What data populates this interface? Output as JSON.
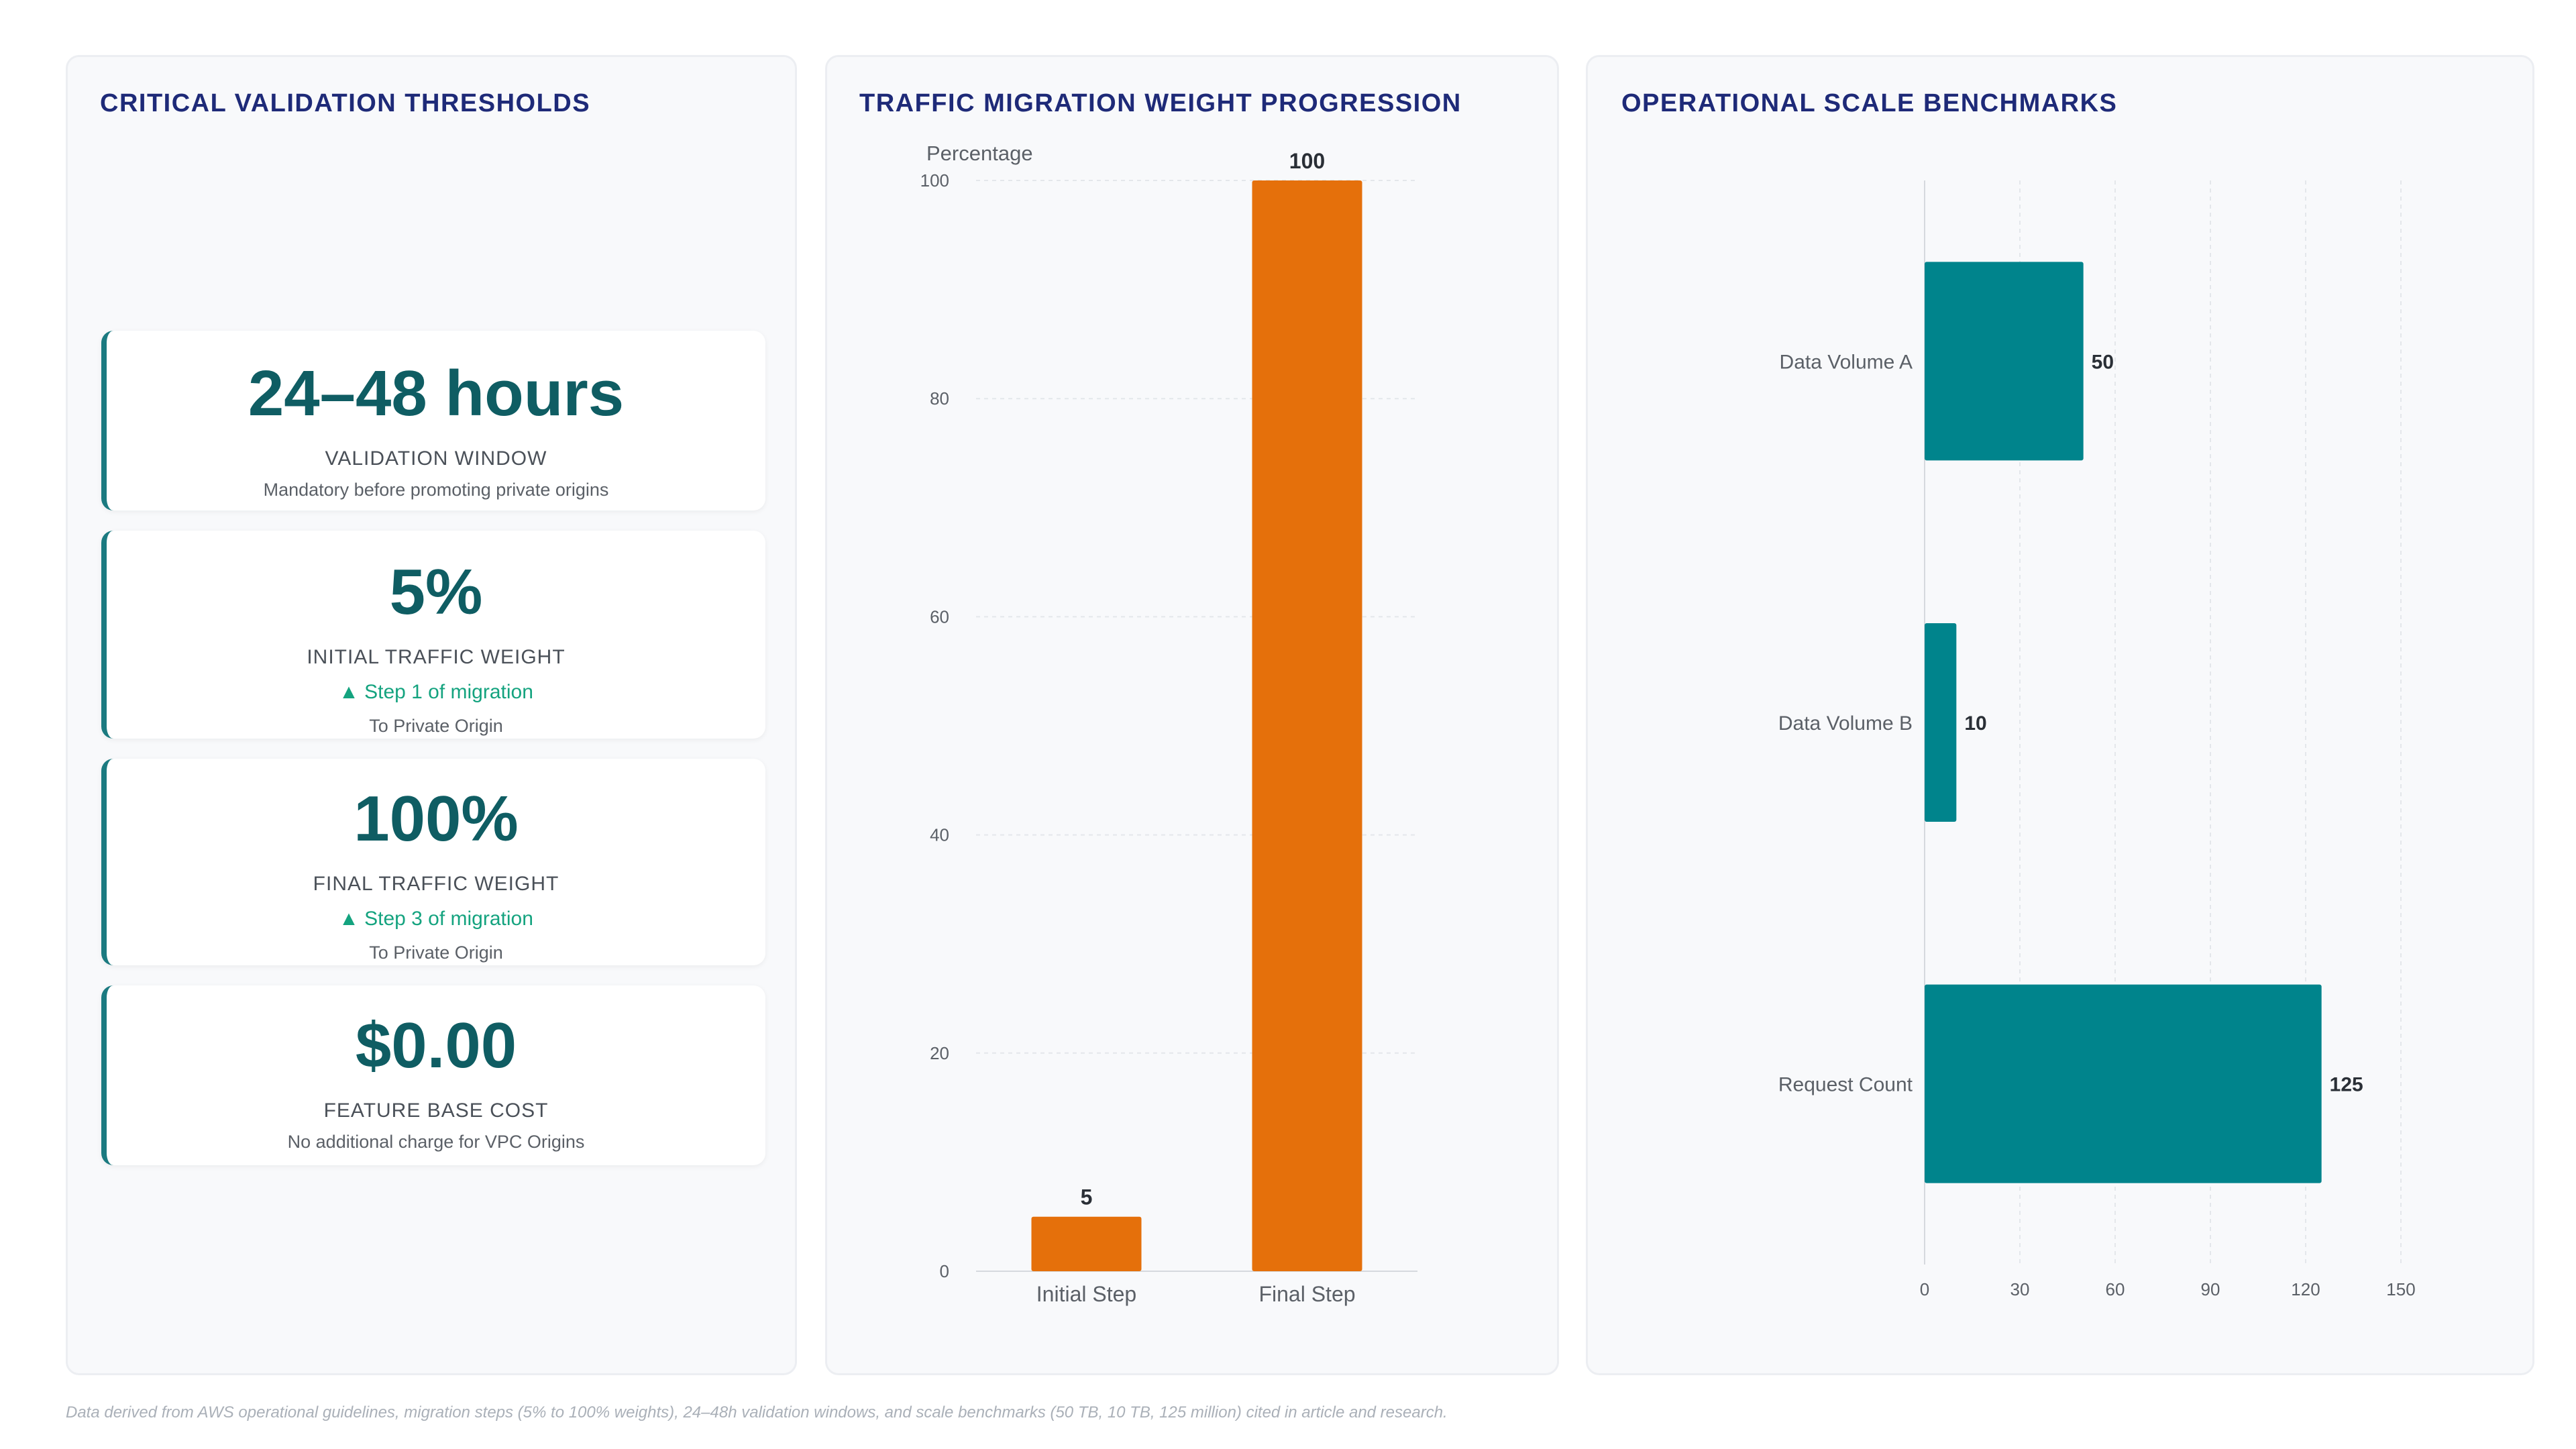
{
  "panels": {
    "thresholds": {
      "title": "CRITICAL VALIDATION THRESHOLDS",
      "kpis": [
        {
          "value": "24–48 hours",
          "label": "VALIDATION WINDOW",
          "trend": "",
          "sub": "Mandatory before promoting private origins"
        },
        {
          "value": "5%",
          "label": "INITIAL TRAFFIC WEIGHT",
          "trend": "▲ Step 1 of migration",
          "sub": "To Private Origin"
        },
        {
          "value": "100%",
          "label": "FINAL TRAFFIC WEIGHT",
          "trend": "▲ Step 3 of migration",
          "sub": "To Private Origin"
        },
        {
          "value": "$0.00",
          "label": "FEATURE BASE COST",
          "trend": "",
          "sub": "No additional charge for VPC Origins"
        }
      ]
    },
    "migration": {
      "title": "TRAFFIC MIGRATION WEIGHT PROGRESSION"
    },
    "scale": {
      "title": "OPERATIONAL SCALE BENCHMARKS"
    }
  },
  "colors": {
    "kpi_value": "#0f5d63",
    "trend": "#14a37f",
    "bar_orange": "#e5700b",
    "bar_teal": "#00848c",
    "title": "#1e2a78"
  },
  "chart_data": [
    {
      "type": "bar",
      "orientation": "vertical",
      "categories": [
        "Initial Step",
        "Final Step"
      ],
      "values": [
        5,
        100
      ],
      "ylabel": "Percentage",
      "ylim": [
        0,
        100
      ],
      "yticks": [
        0,
        20,
        40,
        60,
        80,
        100
      ],
      "color": "#e5700b",
      "data_labels": true,
      "grid": true
    },
    {
      "type": "bar",
      "orientation": "horizontal",
      "categories": [
        "Data Volume A",
        "Data Volume B",
        "Request Count"
      ],
      "values": [
        50,
        10,
        125
      ],
      "xlim": [
        0,
        150
      ],
      "xticks": [
        0,
        30,
        60,
        90,
        120,
        150
      ],
      "color": "#00848c",
      "data_labels": true,
      "grid": true
    }
  ],
  "footnote": "Data derived from AWS operational guidelines, migration steps (5% to 100% weights), 24–48h validation windows, and scale benchmarks (50 TB, 10 TB, 125 million) cited in article and research."
}
